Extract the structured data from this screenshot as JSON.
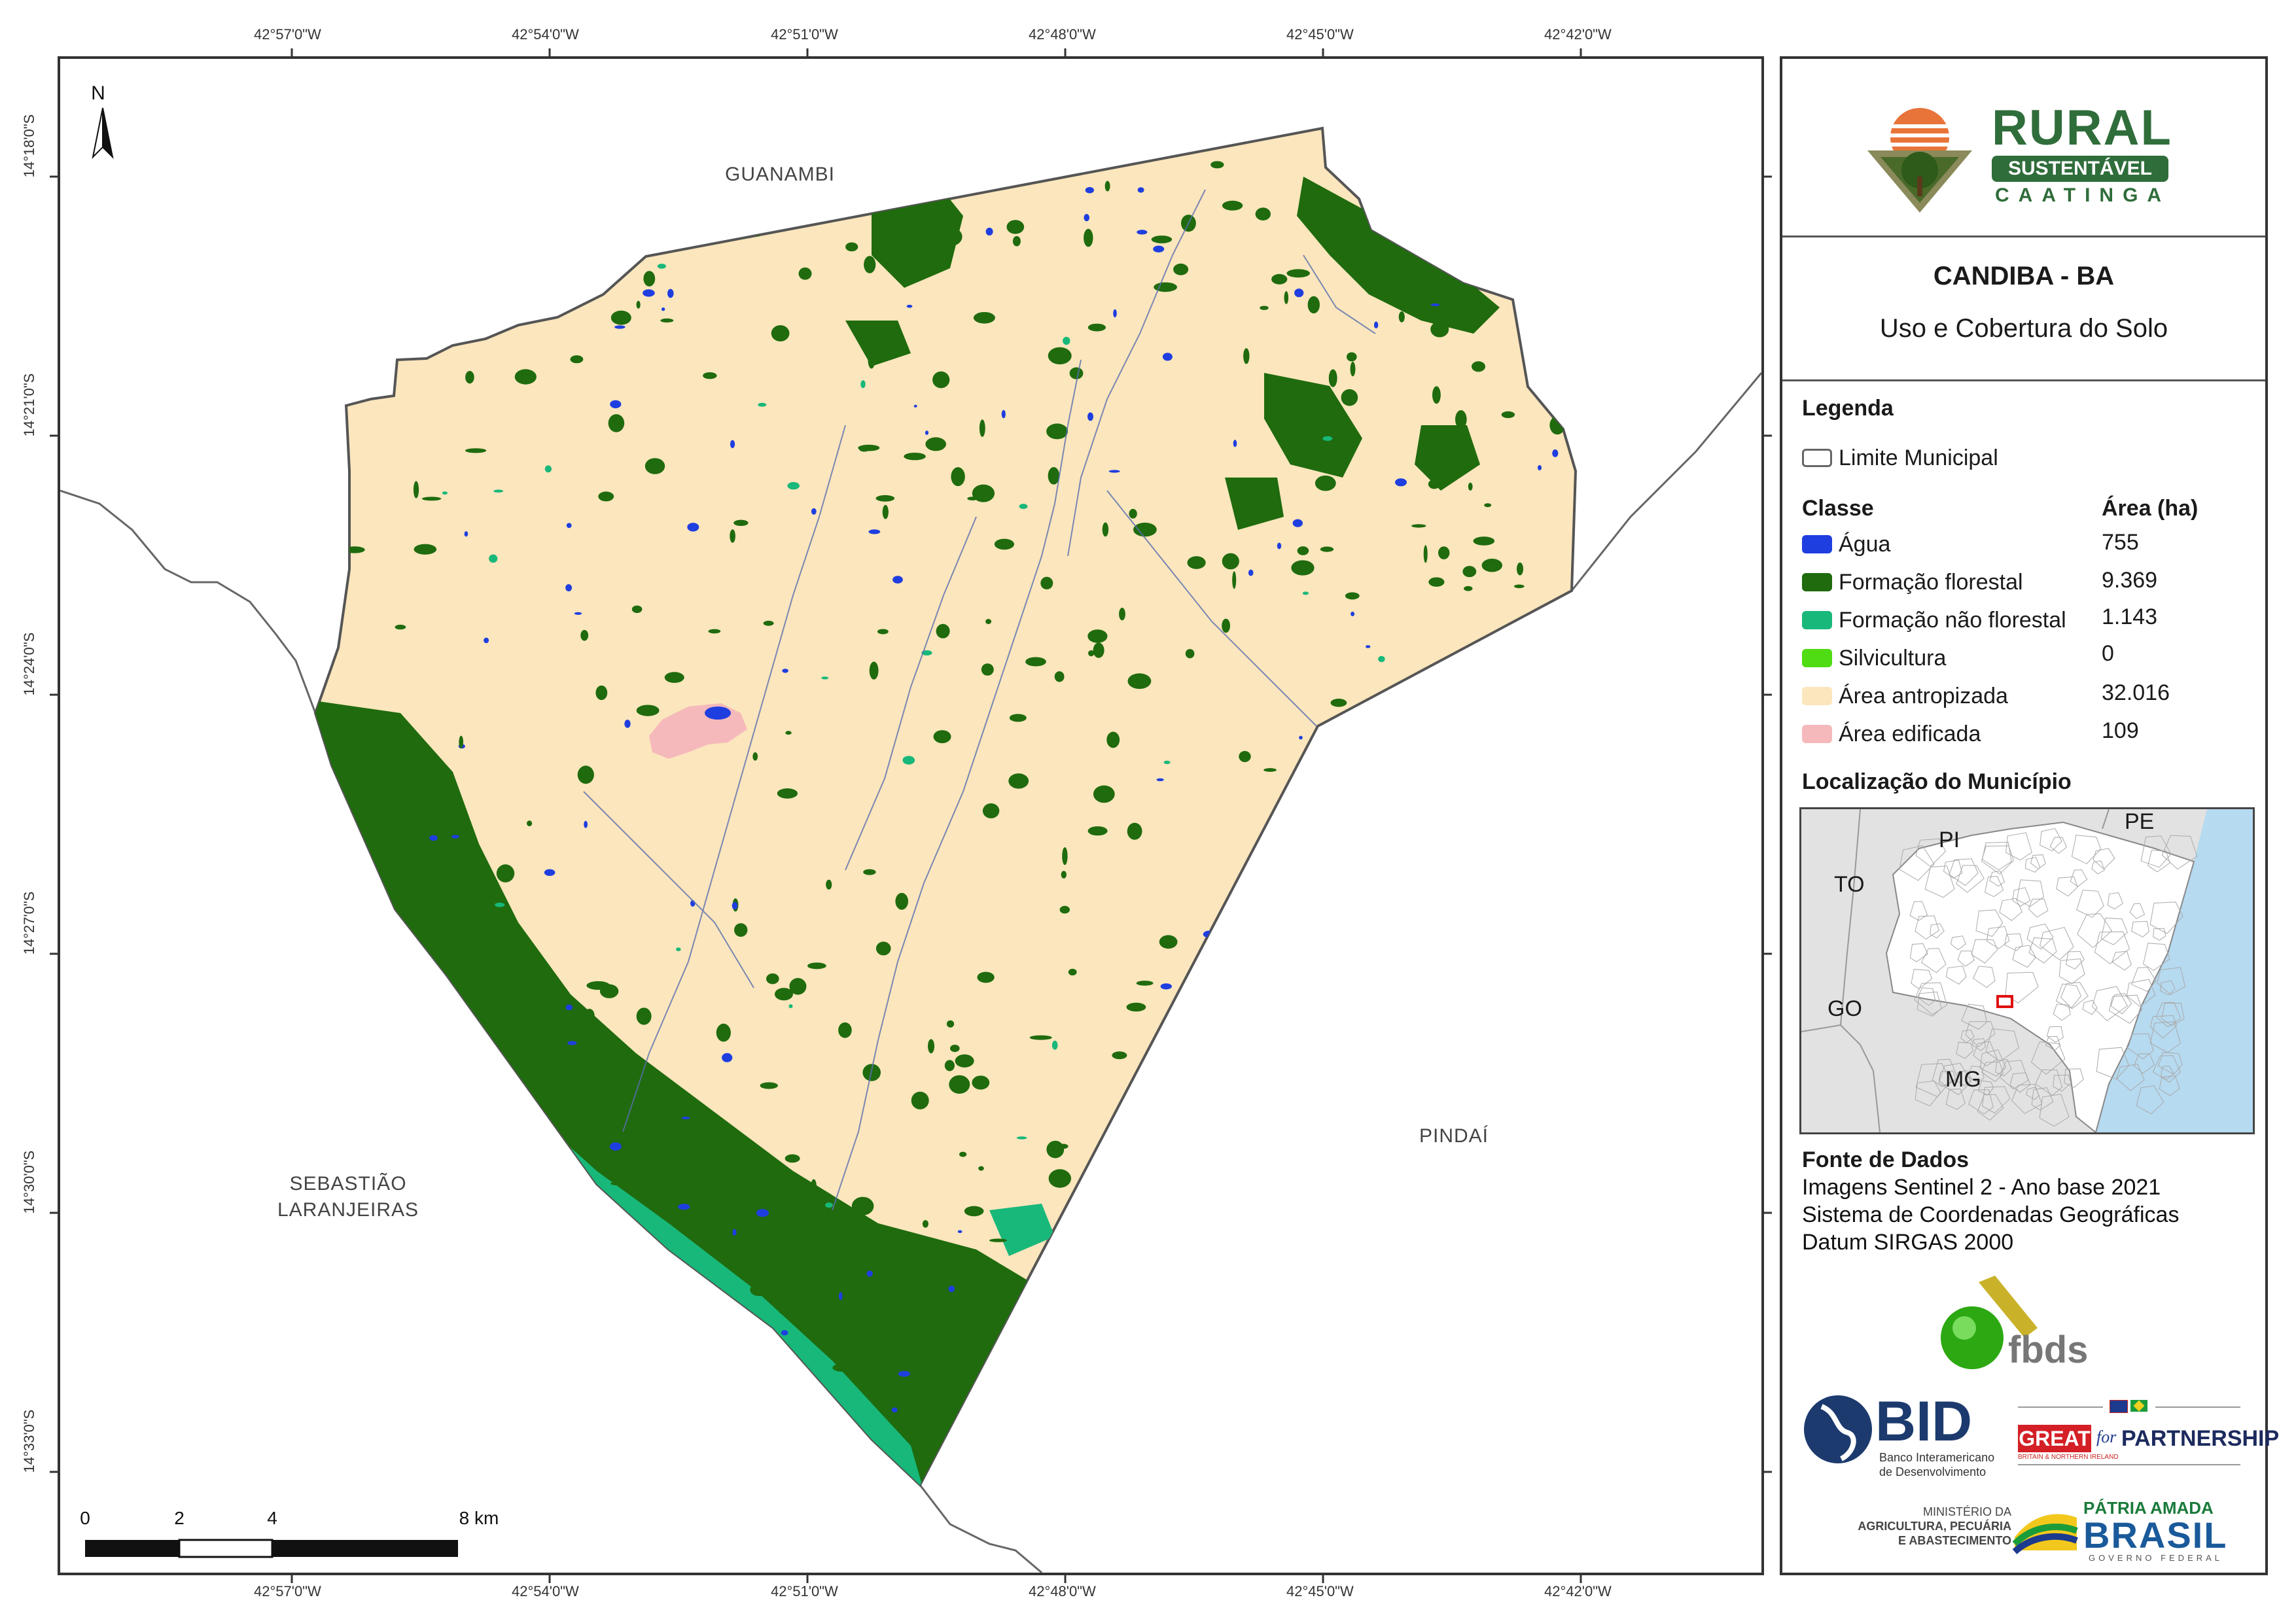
{
  "coordinates": {
    "longitude_labels": [
      "42°57'0\"W",
      "42°54'0\"W",
      "42°51'0\"W",
      "42°48'0\"W",
      "42°45'0\"W",
      "42°42'0\"W"
    ],
    "latitude_labels": [
      "14°18'0\"S",
      "14°21'0\"S",
      "14°24'0\"S",
      "14°27'0\"S",
      "14°30'0\"S",
      "14°33'0\"S"
    ]
  },
  "map": {
    "north_label": "N",
    "neighbors": {
      "north": "GUANAMBI",
      "east": "PINDAÍ",
      "southwest_line1": "SEBASTIÃO",
      "southwest_line2": "LARANJEIRAS"
    },
    "scale_bar": {
      "labels": [
        "0",
        "2",
        "4",
        "8 km"
      ]
    }
  },
  "logo": {
    "rural": "RURAL",
    "sustentavel": "SUSTENTÁVEL",
    "caatinga": "CAATINGA"
  },
  "title": {
    "municipality": "CANDIBA - BA",
    "subtitle": "Uso e Cobertura do Solo"
  },
  "legend": {
    "heading": "Legenda",
    "boundary_label": "Limite Municipal",
    "class_header": "Classe",
    "area_header": "Área (ha)",
    "classes": [
      {
        "name": "Água",
        "area": "755",
        "color": "#1f3ee0"
      },
      {
        "name": "Formação florestal",
        "area": "9.369",
        "color": "#1f6b0e"
      },
      {
        "name": "Formação não florestal",
        "area": "1.143",
        "color": "#18b87a"
      },
      {
        "name": "Silvicultura",
        "area": "0",
        "color": "#4fdc12"
      },
      {
        "name": "Área antropizada",
        "area": "32.016",
        "color": "#fbe6bd"
      },
      {
        "name": "Área edificada",
        "area": "109",
        "color": "#f6b9bb"
      }
    ]
  },
  "locator": {
    "heading": "Localização do Município",
    "states": [
      "PI",
      "PE",
      "TO",
      "GO",
      "MG"
    ]
  },
  "source": {
    "heading": "Fonte de Dados",
    "lines": [
      "Imagens Sentinel 2 - Ano base 2021",
      "Sistema de Coordenadas Geográficas",
      "Datum SIRGAS 2000"
    ]
  },
  "partners": {
    "fbds": "fbds",
    "bid": "BID",
    "bid_sub1": "Banco Interamericano",
    "bid_sub2": "de Desenvolvimento",
    "great": "GREAT",
    "great_for": "for",
    "great_partnership": "PARTNERSHIP",
    "great_sub": "BRITAIN & NORTHERN IRELAND",
    "ministry1": "MINISTÉRIO DA",
    "ministry2": "AGRICULTURA, PECUÁRIA",
    "ministry3": "E ABASTECIMENTO",
    "patria": "PÁTRIA AMADA",
    "brasil": "BRASIL",
    "governo": "GOVERNO FEDERAL"
  }
}
